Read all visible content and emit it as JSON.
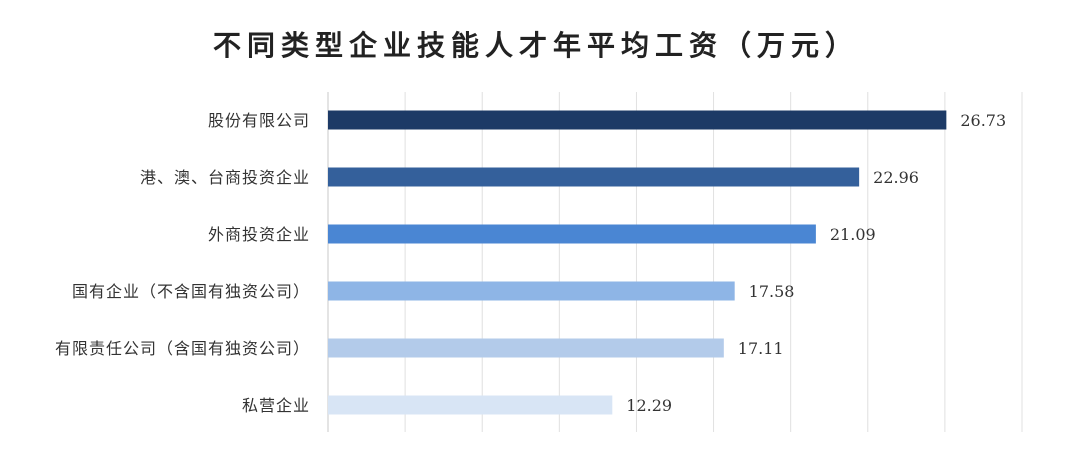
{
  "chart_data": {
    "type": "bar",
    "orientation": "horizontal",
    "title": "不同类型企业技能人才年平均工资（万元）",
    "categories": [
      "股份有限公司",
      "港、澳、台商投资企业",
      "外商投资企业",
      "国有企业（不含国有独资公司）",
      "有限责任公司（含国有独资公司）",
      "私营企业"
    ],
    "values": [
      26.73,
      22.96,
      21.09,
      17.58,
      17.11,
      12.29
    ],
    "value_labels": [
      "26.73",
      "22.96",
      "21.09",
      "17.58",
      "17.11",
      "12.29"
    ],
    "bar_colors": [
      "#1d3a66",
      "#34609b",
      "#4a86d3",
      "#8eb5e6",
      "#b3cbea",
      "#d8e5f5"
    ],
    "xlim": [
      0,
      30
    ],
    "xgrid": true,
    "xlabel": "",
    "ylabel": ""
  }
}
